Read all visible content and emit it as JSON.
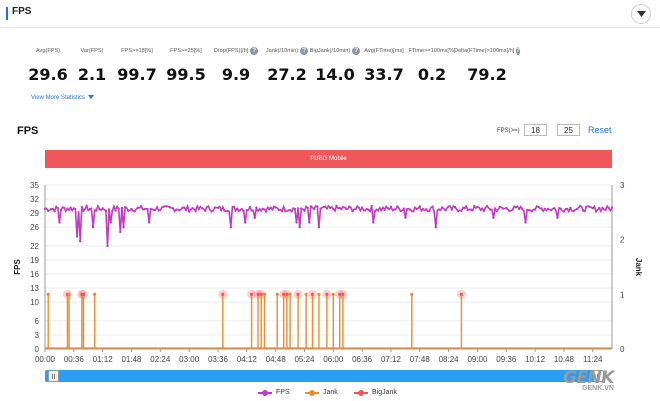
{
  "header": {
    "title": "FPS"
  },
  "stats": [
    {
      "label": "Avg(FPS)",
      "value": "29.6",
      "info": false
    },
    {
      "label": "Var(FPS)",
      "value": "2.1",
      "info": false
    },
    {
      "label": "FPS>=18[%]",
      "value": "99.7",
      "info": false
    },
    {
      "label": "FPS>=25[%]",
      "value": "99.5",
      "info": false
    },
    {
      "label": "Drop(FPS)[/h]",
      "value": "9.9",
      "info": true
    },
    {
      "label": "Jank(/10min)",
      "value": "27.2",
      "info": true
    },
    {
      "label": "BigJank(/10min)",
      "value": "14.0",
      "info": true
    },
    {
      "label": "Avg(FTime)[ms]",
      "value": "33.7",
      "info": false
    },
    {
      "label": "FTime>=100ms[%]",
      "value": "0.2",
      "info": false
    },
    {
      "label": "Delta(FTime)>100ms[/h]",
      "value": "79.2",
      "info": true
    }
  ],
  "more_stats_link": "View More Statistics",
  "section": {
    "title": "FPS",
    "range_label": "FPS(>=)",
    "range_min": "18",
    "range_max": "25",
    "reset_label": "Reset",
    "app_bar_label": "PUBG Mobile"
  },
  "chart_data": {
    "type": "line",
    "ylabel": "FPS",
    "y2label": "Jank",
    "yticks": [
      0,
      3,
      6,
      10,
      13,
      16,
      19,
      22,
      26,
      29,
      32,
      35
    ],
    "y2ticks": [
      0,
      1,
      2,
      3
    ],
    "xticks": [
      "00:00",
      "00:36",
      "01:12",
      "01:48",
      "02:24",
      "03:00",
      "03:36",
      "04:12",
      "04:48",
      "05:24",
      "06:00",
      "06:36",
      "07:12",
      "07:48",
      "08:24",
      "09:00",
      "09:36",
      "10:12",
      "10:48",
      "11:24"
    ],
    "duration_seconds": 708,
    "fps_baseline": 30,
    "fps_dips": [
      {
        "t": 18,
        "fps": 27
      },
      {
        "t": 40,
        "fps": 24
      },
      {
        "t": 44,
        "fps": 23
      },
      {
        "t": 60,
        "fps": 26
      },
      {
        "t": 78,
        "fps": 22
      },
      {
        "t": 82,
        "fps": 27
      },
      {
        "t": 94,
        "fps": 25
      },
      {
        "t": 98,
        "fps": 26
      },
      {
        "t": 130,
        "fps": 27
      },
      {
        "t": 195,
        "fps": 28
      },
      {
        "t": 232,
        "fps": 26
      },
      {
        "t": 250,
        "fps": 27
      },
      {
        "t": 262,
        "fps": 28
      },
      {
        "t": 285,
        "fps": 27
      },
      {
        "t": 293,
        "fps": 26
      },
      {
        "t": 303,
        "fps": 24
      },
      {
        "t": 314,
        "fps": 27
      },
      {
        "t": 318,
        "fps": 26
      },
      {
        "t": 330,
        "fps": 27
      },
      {
        "t": 342,
        "fps": 26
      },
      {
        "t": 363,
        "fps": 27
      },
      {
        "t": 375,
        "fps": 28
      },
      {
        "t": 410,
        "fps": 27
      },
      {
        "t": 450,
        "fps": 28
      },
      {
        "t": 488,
        "fps": 26
      },
      {
        "t": 525,
        "fps": 25
      },
      {
        "t": 560,
        "fps": 28
      },
      {
        "t": 600,
        "fps": 27
      },
      {
        "t": 640,
        "fps": 28
      },
      {
        "t": 695,
        "fps": 27
      }
    ],
    "jank_events": [
      {
        "t": 4,
        "big": false
      },
      {
        "t": 28,
        "big": true
      },
      {
        "t": 30,
        "big": false
      },
      {
        "t": 46,
        "big": true
      },
      {
        "t": 48,
        "big": true
      },
      {
        "t": 62,
        "big": false
      },
      {
        "t": 222,
        "big": true
      },
      {
        "t": 258,
        "big": true
      },
      {
        "t": 266,
        "big": true
      },
      {
        "t": 270,
        "big": true
      },
      {
        "t": 274,
        "big": false
      },
      {
        "t": 290,
        "big": false
      },
      {
        "t": 298,
        "big": true
      },
      {
        "t": 302,
        "big": true
      },
      {
        "t": 306,
        "big": false
      },
      {
        "t": 316,
        "big": true
      },
      {
        "t": 326,
        "big": false
      },
      {
        "t": 334,
        "big": true
      },
      {
        "t": 342,
        "big": false
      },
      {
        "t": 352,
        "big": true
      },
      {
        "t": 360,
        "big": false
      },
      {
        "t": 368,
        "big": true
      },
      {
        "t": 372,
        "big": true
      },
      {
        "t": 458,
        "big": false
      },
      {
        "t": 520,
        "big": true
      }
    ],
    "legend": [
      {
        "name": "FPS",
        "color": "#c23ac2"
      },
      {
        "name": "Jank",
        "color": "#f08a2b"
      },
      {
        "name": "BigJank",
        "color": "#f0575b"
      }
    ]
  },
  "watermark": {
    "brand": "GENK",
    "domain": "GENK.VN"
  },
  "colors": {
    "accent": "#1e73d8",
    "fps": "#c23ac2",
    "jank": "#f08a2b",
    "bigjank": "#f0575b",
    "scroll": "#2a9df4"
  }
}
